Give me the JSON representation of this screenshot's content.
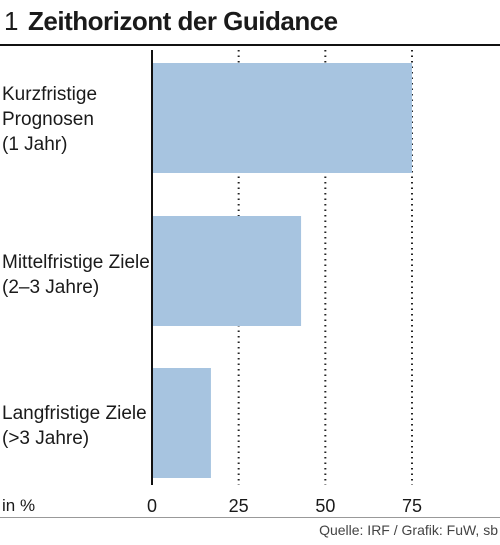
{
  "header": {
    "number": "1",
    "title": "Zeithorizont der Guidance"
  },
  "chart_data": {
    "type": "bar",
    "orientation": "horizontal",
    "categories": [
      "Kurzfristige\nPrognosen\n(1 Jahr)",
      "Mittelfristige Ziele\n(2–3 Jahre)",
      "Langfristige Ziele\n(>3 Jahre)"
    ],
    "values": [
      75,
      43,
      17
    ],
    "xlim": [
      0,
      100
    ],
    "xticks": [
      0,
      25,
      50,
      75
    ],
    "xlabel": "in %",
    "grid": "vertical-dotted",
    "bar_color": "#a7c4e0"
  },
  "footer": {
    "source": "Quelle: IRF / Grafik: FuW, sb"
  }
}
